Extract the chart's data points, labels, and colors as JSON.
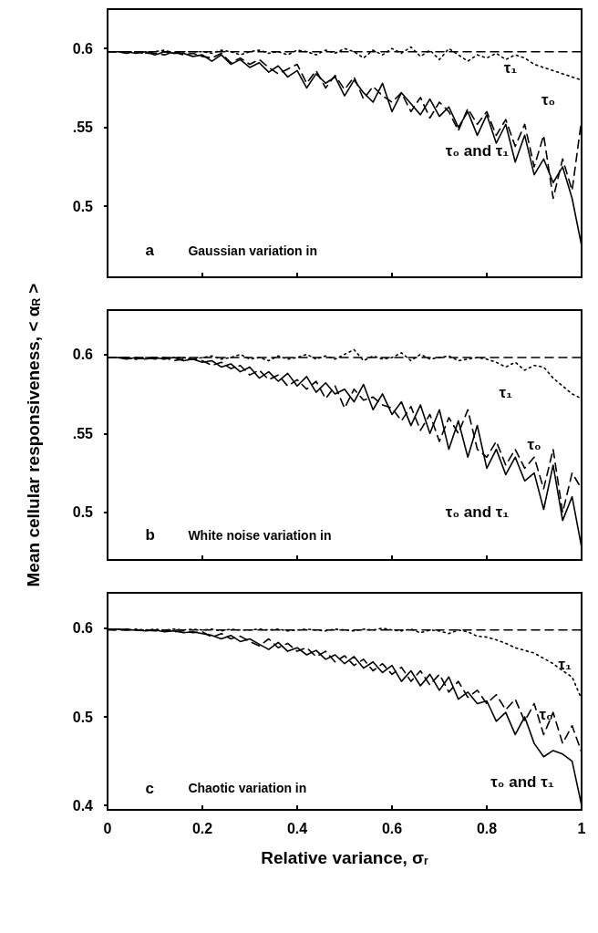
{
  "chart_data": [
    {
      "type": "line",
      "x": [
        0,
        0.02,
        0.04,
        0.06,
        0.08,
        0.1,
        0.12,
        0.14,
        0.16,
        0.18,
        0.2,
        0.22,
        0.24,
        0.26,
        0.28,
        0.3,
        0.32,
        0.34,
        0.36,
        0.38,
        0.4,
        0.42,
        0.44,
        0.46,
        0.48,
        0.5,
        0.52,
        0.54,
        0.56,
        0.58,
        0.6,
        0.62,
        0.64,
        0.66,
        0.68,
        0.7,
        0.72,
        0.74,
        0.76,
        0.78,
        0.8,
        0.82,
        0.84,
        0.86,
        0.88,
        0.9,
        0.92,
        0.94,
        0.96,
        0.98,
        1
      ],
      "series": [
        {
          "color": "#000000",
          "line_style": "solid",
          "values": [
            0.598,
            0.598,
            0.598,
            0.597,
            0.598,
            0.596,
            0.598,
            0.597,
            0.597,
            0.595,
            0.596,
            0.592,
            0.596,
            0.59,
            0.593,
            0.588,
            0.591,
            0.585,
            0.589,
            0.582,
            0.586,
            0.575,
            0.584,
            0.578,
            0.582,
            0.57,
            0.58,
            0.572,
            0.566,
            0.578,
            0.56,
            0.572,
            0.565,
            0.558,
            0.568,
            0.557,
            0.563,
            0.55,
            0.56,
            0.545,
            0.558,
            0.54,
            0.552,
            0.528,
            0.545,
            0.52,
            0.53,
            0.515,
            0.525,
            0.505,
            0.475
          ]
        },
        {
          "color": "#000000",
          "line_style": "dashed",
          "values": [
            0.598,
            0.598,
            0.597,
            0.598,
            0.597,
            0.597,
            0.596,
            0.598,
            0.596,
            0.597,
            0.595,
            0.594,
            0.597,
            0.591,
            0.594,
            0.59,
            0.593,
            0.588,
            0.584,
            0.587,
            0.59,
            0.578,
            0.586,
            0.575,
            0.583,
            0.574,
            0.582,
            0.568,
            0.576,
            0.57,
            0.566,
            0.572,
            0.56,
            0.569,
            0.556,
            0.566,
            0.56,
            0.548,
            0.562,
            0.552,
            0.56,
            0.545,
            0.555,
            0.538,
            0.552,
            0.525,
            0.545,
            0.505,
            0.53,
            0.51,
            0.555
          ]
        },
        {
          "color": "#000000",
          "line_style": "dotted",
          "values": [
            0.598,
            0.598,
            0.598,
            0.598,
            0.597,
            0.598,
            0.599,
            0.597,
            0.598,
            0.598,
            0.598,
            0.597,
            0.599,
            0.598,
            0.596,
            0.598,
            0.599,
            0.597,
            0.598,
            0.596,
            0.599,
            0.598,
            0.596,
            0.599,
            0.597,
            0.6,
            0.598,
            0.594,
            0.599,
            0.596,
            0.6,
            0.597,
            0.601,
            0.595,
            0.599,
            0.593,
            0.6,
            0.596,
            0.592,
            0.596,
            0.594,
            0.597,
            0.593,
            0.596,
            0.594,
            0.59,
            0.588,
            0.586,
            0.584,
            0.582,
            0.58
          ]
        },
        {
          "color": "#000000",
          "line_style": "dashed",
          "values": [
            0.598,
            0.598,
            0.598,
            0.598,
            0.598,
            0.598,
            0.598,
            0.598,
            0.598,
            0.598,
            0.598,
            0.598,
            0.598,
            0.598,
            0.598,
            0.598,
            0.598,
            0.598,
            0.598,
            0.598,
            0.598,
            0.598,
            0.598,
            0.598,
            0.598,
            0.598,
            0.598,
            0.598,
            0.598,
            0.598,
            0.598,
            0.598,
            0.598,
            0.598,
            0.598,
            0.598,
            0.598,
            0.598,
            0.598,
            0.598,
            0.598,
            0.598,
            0.598,
            0.598,
            0.598,
            0.598,
            0.598,
            0.598,
            0.598,
            0.598,
            0.598
          ]
        }
      ],
      "xlim": [
        0,
        1
      ],
      "xticks": [
        0,
        0.2,
        0.4,
        0.6,
        0.8,
        1
      ],
      "ylim": [
        0.455,
        0.625
      ],
      "yticks": [
        0.5,
        {
          "value": 0.55,
          "label": ".55"
        },
        0.6
      ],
      "tick_labels": "y",
      "grid": false,
      "marker": "none",
      "annotations": [
        "a",
        "Gaussian variation in",
        "τ₁",
        "τ₀",
        "τ₀ and τ₁"
      ]
    },
    {
      "type": "line",
      "x": [
        0,
        0.02,
        0.04,
        0.06,
        0.08,
        0.1,
        0.12,
        0.14,
        0.16,
        0.18,
        0.2,
        0.22,
        0.24,
        0.26,
        0.28,
        0.3,
        0.32,
        0.34,
        0.36,
        0.38,
        0.4,
        0.42,
        0.44,
        0.46,
        0.48,
        0.5,
        0.52,
        0.54,
        0.56,
        0.58,
        0.6,
        0.62,
        0.64,
        0.66,
        0.68,
        0.7,
        0.72,
        0.74,
        0.76,
        0.78,
        0.8,
        0.82,
        0.84,
        0.86,
        0.88,
        0.9,
        0.92,
        0.94,
        0.96,
        0.98,
        1
      ],
      "ylabel": "Mean cellular responsiveness, < α$_{R}$ >",
      "series": [
        {
          "color": "#000000",
          "line_style": "solid",
          "values": [
            0.598,
            0.598,
            0.597,
            0.598,
            0.597,
            0.598,
            0.597,
            0.598,
            0.596,
            0.597,
            0.595,
            0.596,
            0.592,
            0.594,
            0.589,
            0.592,
            0.585,
            0.589,
            0.583,
            0.588,
            0.58,
            0.586,
            0.576,
            0.582,
            0.575,
            0.578,
            0.57,
            0.581,
            0.565,
            0.575,
            0.562,
            0.57,
            0.555,
            0.568,
            0.55,
            0.565,
            0.54,
            0.558,
            0.535,
            0.555,
            0.528,
            0.54,
            0.524,
            0.535,
            0.52,
            0.525,
            0.502,
            0.53,
            0.495,
            0.51,
            0.478
          ]
        },
        {
          "color": "#000000",
          "line_style": "dashed",
          "values": [
            0.598,
            0.598,
            0.598,
            0.597,
            0.598,
            0.597,
            0.598,
            0.596,
            0.597,
            0.597,
            0.596,
            0.593,
            0.595,
            0.591,
            0.593,
            0.587,
            0.59,
            0.584,
            0.587,
            0.58,
            0.584,
            0.578,
            0.583,
            0.572,
            0.58,
            0.566,
            0.578,
            0.571,
            0.573,
            0.568,
            0.566,
            0.558,
            0.567,
            0.552,
            0.562,
            0.545,
            0.56,
            0.55,
            0.565,
            0.54,
            0.535,
            0.545,
            0.53,
            0.54,
            0.528,
            0.535,
            0.515,
            0.54,
            0.5,
            0.525,
            0.515
          ]
        },
        {
          "color": "#000000",
          "line_style": "dotted",
          "values": [
            0.598,
            0.598,
            0.598,
            0.597,
            0.598,
            0.598,
            0.597,
            0.598,
            0.598,
            0.597,
            0.598,
            0.599,
            0.597,
            0.598,
            0.6,
            0.597,
            0.598,
            0.596,
            0.599,
            0.597,
            0.598,
            0.6,
            0.597,
            0.599,
            0.597,
            0.6,
            0.603,
            0.596,
            0.599,
            0.597,
            0.598,
            0.601,
            0.596,
            0.6,
            0.597,
            0.598,
            0.599,
            0.596,
            0.597,
            0.598,
            0.597,
            0.595,
            0.592,
            0.595,
            0.59,
            0.593,
            0.592,
            0.585,
            0.58,
            0.575,
            0.572
          ]
        },
        {
          "color": "#000000",
          "line_style": "dashed",
          "values": [
            0.598,
            0.598,
            0.598,
            0.598,
            0.598,
            0.598,
            0.598,
            0.598,
            0.598,
            0.598,
            0.598,
            0.598,
            0.598,
            0.598,
            0.598,
            0.598,
            0.598,
            0.598,
            0.598,
            0.598,
            0.598,
            0.598,
            0.598,
            0.598,
            0.598,
            0.598,
            0.598,
            0.598,
            0.598,
            0.598,
            0.598,
            0.598,
            0.598,
            0.598,
            0.598,
            0.598,
            0.598,
            0.598,
            0.598,
            0.598,
            0.598,
            0.598,
            0.598,
            0.598,
            0.598,
            0.598,
            0.598,
            0.598,
            0.598,
            0.598,
            0.598
          ]
        }
      ],
      "xlim": [
        0,
        1
      ],
      "xticks": [
        0,
        0.2,
        0.4,
        0.6,
        0.8,
        1
      ],
      "ylim": [
        0.47,
        0.628
      ],
      "yticks": [
        0.5,
        {
          "value": 0.55,
          "label": ".55"
        },
        0.6
      ],
      "tick_labels": "y",
      "grid": false,
      "marker": "none",
      "annotations": [
        "b",
        "White noise variation in",
        "τ₁",
        "τ₀",
        "τ₀ and τ₁"
      ]
    },
    {
      "type": "line",
      "x": [
        0,
        0.02,
        0.04,
        0.06,
        0.08,
        0.1,
        0.12,
        0.14,
        0.16,
        0.18,
        0.2,
        0.22,
        0.24,
        0.26,
        0.28,
        0.3,
        0.32,
        0.34,
        0.36,
        0.38,
        0.4,
        0.42,
        0.44,
        0.46,
        0.48,
        0.5,
        0.52,
        0.54,
        0.56,
        0.58,
        0.6,
        0.62,
        0.64,
        0.66,
        0.68,
        0.7,
        0.72,
        0.74,
        0.76,
        0.78,
        0.8,
        0.82,
        0.84,
        0.86,
        0.88,
        0.9,
        0.92,
        0.94,
        0.96,
        0.98,
        1
      ],
      "xlabel": "Relative variance, σ$_{r}$",
      "series": [
        {
          "color": "#000000",
          "line_style": "solid",
          "values": [
            0.599,
            0.599,
            0.598,
            0.598,
            0.597,
            0.598,
            0.596,
            0.597,
            0.595,
            0.596,
            0.594,
            0.592,
            0.588,
            0.592,
            0.585,
            0.588,
            0.582,
            0.576,
            0.584,
            0.574,
            0.578,
            0.57,
            0.575,
            0.565,
            0.57,
            0.56,
            0.568,
            0.555,
            0.562,
            0.55,
            0.558,
            0.54,
            0.552,
            0.535,
            0.548,
            0.53,
            0.545,
            0.52,
            0.528,
            0.515,
            0.518,
            0.495,
            0.505,
            0.48,
            0.5,
            0.47,
            0.455,
            0.462,
            0.458,
            0.45,
            0.4
          ]
        },
        {
          "color": "#000000",
          "line_style": "dashed",
          "values": [
            0.599,
            0.598,
            0.599,
            0.598,
            0.598,
            0.597,
            0.598,
            0.596,
            0.597,
            0.595,
            0.596,
            0.59,
            0.594,
            0.588,
            0.591,
            0.585,
            0.58,
            0.588,
            0.578,
            0.583,
            0.574,
            0.578,
            0.568,
            0.574,
            0.562,
            0.569,
            0.558,
            0.565,
            0.552,
            0.56,
            0.548,
            0.556,
            0.54,
            0.552,
            0.536,
            0.548,
            0.528,
            0.54,
            0.522,
            0.53,
            0.515,
            0.525,
            0.508,
            0.52,
            0.495,
            0.515,
            0.48,
            0.505,
            0.47,
            0.49,
            0.46
          ]
        },
        {
          "color": "#000000",
          "line_style": "dotted",
          "values": [
            0.599,
            0.599,
            0.598,
            0.599,
            0.598,
            0.599,
            0.598,
            0.599,
            0.598,
            0.599,
            0.598,
            0.599,
            0.597,
            0.599,
            0.598,
            0.598,
            0.599,
            0.598,
            0.599,
            0.597,
            0.598,
            0.599,
            0.598,
            0.597,
            0.599,
            0.598,
            0.597,
            0.599,
            0.598,
            0.6,
            0.598,
            0.597,
            0.599,
            0.595,
            0.598,
            0.597,
            0.594,
            0.598,
            0.596,
            0.591,
            0.59,
            0.587,
            0.583,
            0.578,
            0.575,
            0.572,
            0.566,
            0.56,
            0.552,
            0.545,
            0.52
          ]
        },
        {
          "color": "#000000",
          "line_style": "dashed",
          "values": [
            0.598,
            0.598,
            0.598,
            0.598,
            0.598,
            0.598,
            0.598,
            0.598,
            0.598,
            0.598,
            0.598,
            0.598,
            0.598,
            0.598,
            0.598,
            0.598,
            0.598,
            0.598,
            0.598,
            0.598,
            0.598,
            0.598,
            0.598,
            0.598,
            0.598,
            0.598,
            0.598,
            0.598,
            0.598,
            0.598,
            0.598,
            0.598,
            0.598,
            0.598,
            0.598,
            0.598,
            0.598,
            0.598,
            0.598,
            0.598,
            0.598,
            0.598,
            0.598,
            0.598,
            0.598,
            0.598,
            0.598,
            0.598,
            0.598,
            0.598,
            0.598
          ]
        }
      ],
      "xlim": [
        0,
        1
      ],
      "xticks": [
        0,
        0.2,
        0.4,
        0.6,
        0.8,
        1
      ],
      "ylim": [
        0.395,
        0.64
      ],
      "yticks": [
        0.4,
        0.5,
        0.6
      ],
      "grid": false,
      "marker": "none",
      "annotations": [
        "c",
        "Chaotic variation in",
        "τ₁",
        "τ₀",
        "τ₀ and τ₁"
      ]
    }
  ]
}
